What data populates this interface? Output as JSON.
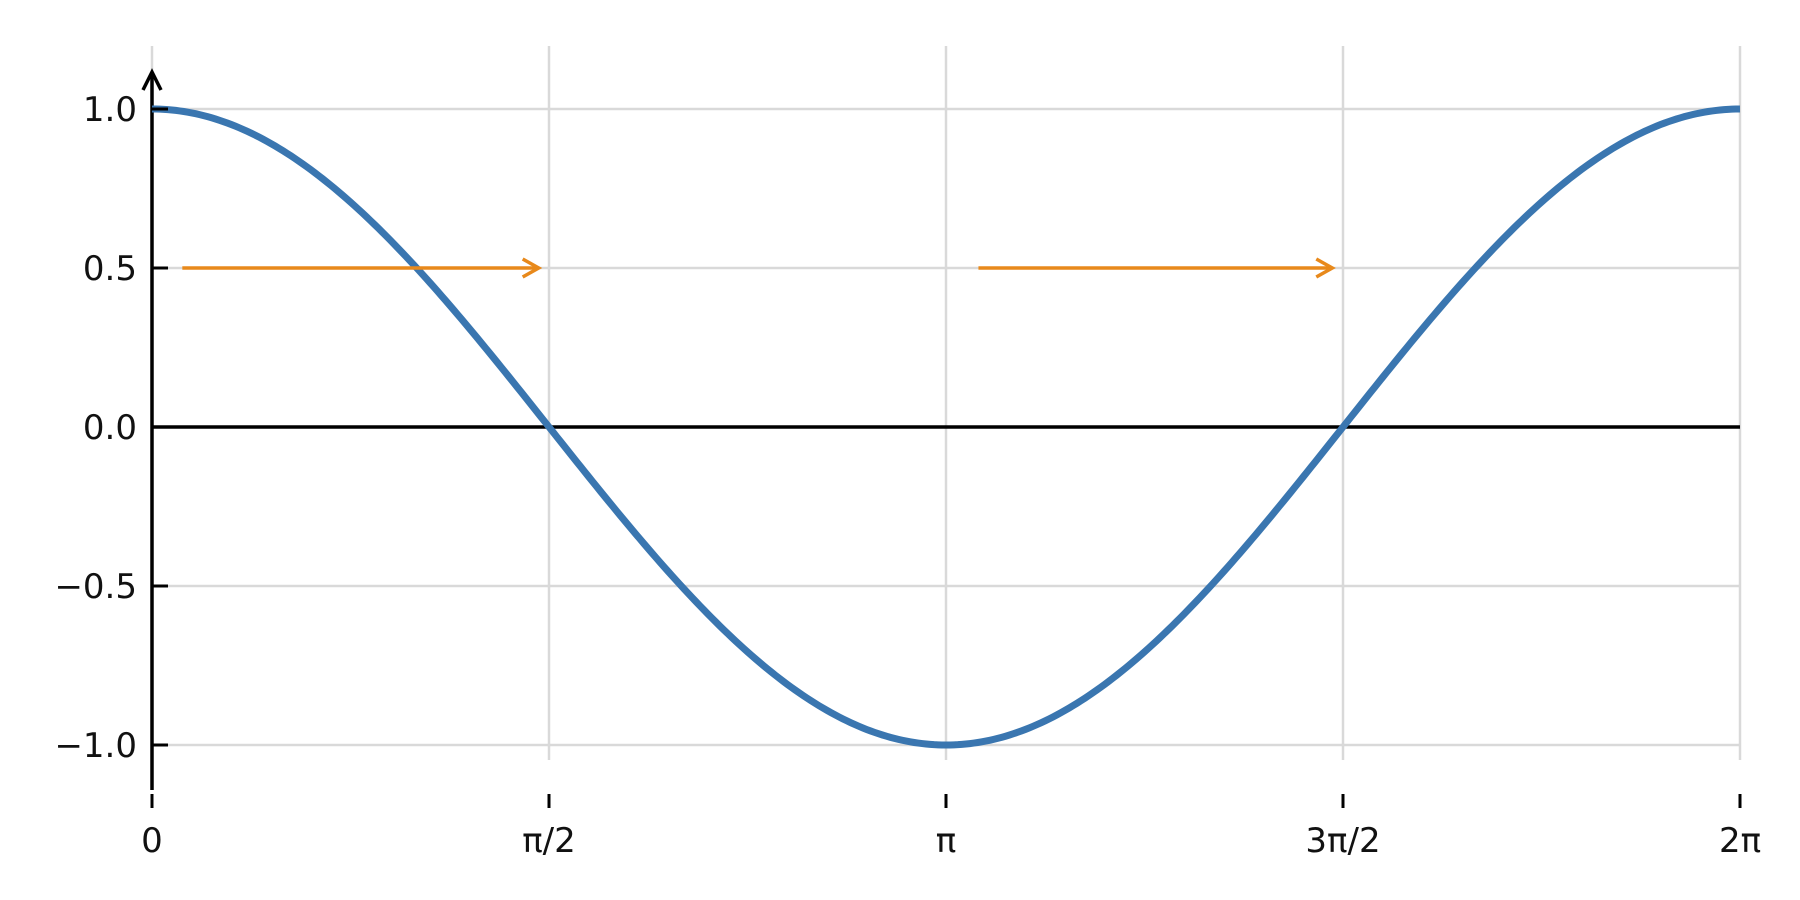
{
  "chart_data": {
    "type": "line",
    "title": "",
    "xlabel": "",
    "ylabel": "",
    "xlim": [
      0,
      6.283185
    ],
    "ylim": [
      -1.15,
      1.2
    ],
    "grid": true,
    "x_ticks": [
      {
        "value": 0,
        "label": "0"
      },
      {
        "value": 1.570796,
        "label": "π/2"
      },
      {
        "value": 3.141593,
        "label": "π"
      },
      {
        "value": 4.712389,
        "label": "3π/2"
      },
      {
        "value": 6.283185,
        "label": "2π"
      }
    ],
    "y_ticks": [
      {
        "value": 1.0,
        "label": "1.0"
      },
      {
        "value": 0.5,
        "label": "0.5"
      },
      {
        "value": 0.0,
        "label": "0.0"
      },
      {
        "value": -0.5,
        "label": "−0.5"
      },
      {
        "value": -1.0,
        "label": "−1.0"
      }
    ],
    "series": [
      {
        "color": "#3a76b0",
        "function": "cos(x)",
        "points": [
          [
            0,
            1.0
          ],
          [
            0.3927,
            0.9239
          ],
          [
            0.7854,
            0.7071
          ],
          [
            1.1781,
            0.3827
          ],
          [
            1.5708,
            0.0
          ],
          [
            1.9635,
            -0.3827
          ],
          [
            2.3562,
            -0.7071
          ],
          [
            2.7489,
            -0.9239
          ],
          [
            3.1416,
            -1.0
          ],
          [
            3.5343,
            -0.9239
          ],
          [
            3.927,
            -0.7071
          ],
          [
            4.3197,
            -0.3827
          ],
          [
            4.7124,
            0.0
          ],
          [
            5.1051,
            0.3827
          ],
          [
            5.4978,
            0.7071
          ],
          [
            5.8905,
            0.9239
          ],
          [
            6.2832,
            1.0
          ]
        ]
      }
    ],
    "annotations": [
      {
        "type": "arrow",
        "color": "#e8891b",
        "from": [
          0.12,
          0.5
        ],
        "to": [
          1.53,
          0.5
        ]
      },
      {
        "type": "arrow",
        "color": "#e8891b",
        "from": [
          3.27,
          0.5
        ],
        "to": [
          4.67,
          0.5
        ]
      }
    ],
    "axes": {
      "x_axis_at_y": 0,
      "y_axis_at_x": 0,
      "axis_color": "#000000",
      "grid_color": "#d9d9d9"
    }
  }
}
